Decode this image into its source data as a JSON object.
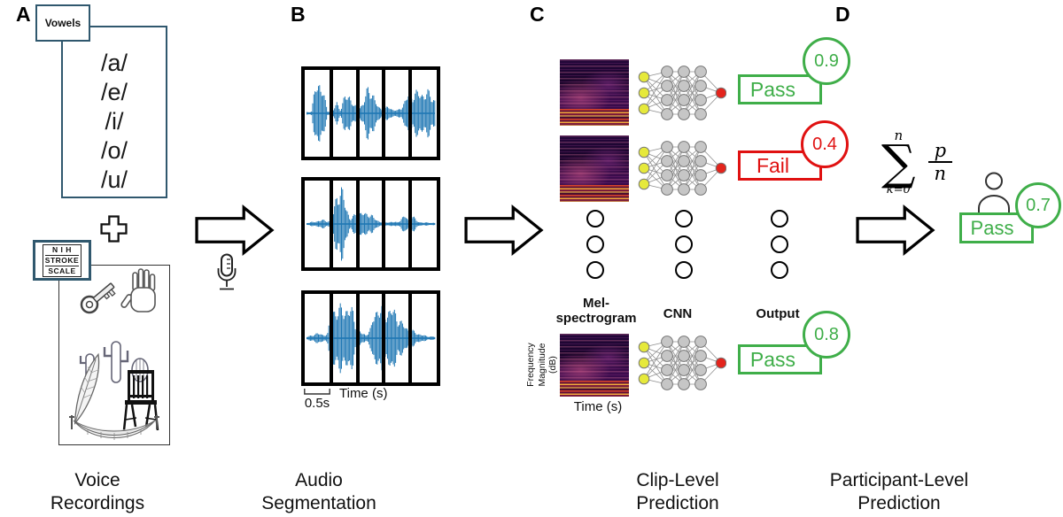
{
  "panels": {
    "a": {
      "letter": "A",
      "caption": "Voice\nRecordings"
    },
    "b": {
      "letter": "B",
      "caption": "Audio\nSegmentation"
    },
    "c": {
      "letter": "C",
      "caption": "Clip-Level\nPrediction"
    },
    "d": {
      "letter": "D",
      "caption": "Participant-Level\nPrediction"
    }
  },
  "panelA": {
    "vowels_tab_label": "Vowels",
    "vowels": [
      "/a/",
      "/e/",
      "/i/",
      "/o/",
      "/u/"
    ],
    "nih_scale_lines": [
      "N I H",
      "STROKE",
      "SCALE"
    ],
    "picture_items": [
      "key",
      "glove",
      "cacti",
      "feather",
      "chair",
      "hammock"
    ],
    "icons": [
      "plus-icon",
      "microphone-icon"
    ]
  },
  "panelB": {
    "segment_duration": "0.5s",
    "x_axis": "Time (s)"
  },
  "panelC": {
    "headers": {
      "spectrogram": "Mel-\nspectrogram",
      "cnn": "CNN",
      "output": "Output"
    },
    "y_axis": "Frequency\nMagnitude\n(dB)",
    "x_axis": "Time (s)",
    "clip_outputs": [
      {
        "label": "Pass",
        "score": "0.9",
        "status": "pass"
      },
      {
        "label": "Fail",
        "score": "0.4",
        "status": "fail"
      },
      {
        "label": "Pass",
        "score": "0.8",
        "status": "pass"
      }
    ]
  },
  "panelD": {
    "formula": {
      "sum": "∑",
      "upper_limit": "n",
      "lower_limit": "k=0",
      "numerator": "p",
      "denominator": "n"
    },
    "participant_output": {
      "label": "Pass",
      "score": "0.7",
      "status": "pass"
    }
  },
  "colors": {
    "pass_green": "#3fae49",
    "fail_red": "#e01111",
    "waveform_blue": "#1f77b4",
    "outline_navy": "#30586e"
  }
}
